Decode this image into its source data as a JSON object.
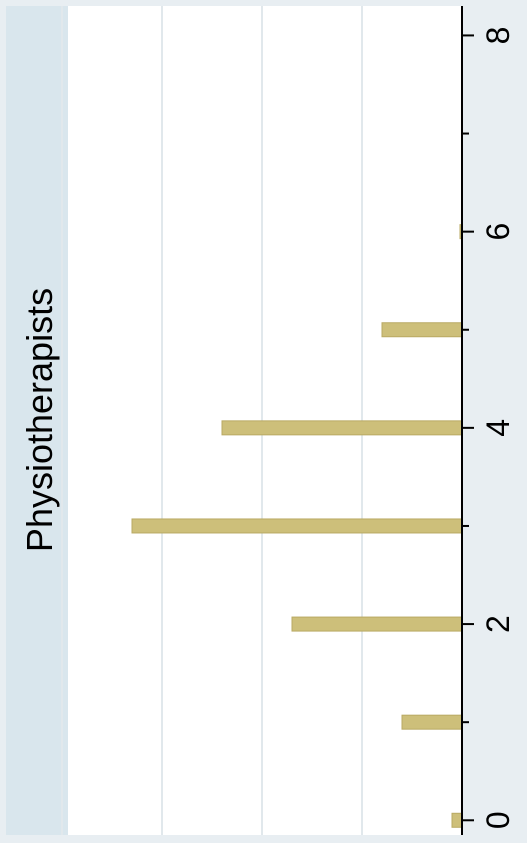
{
  "chart_data": {
    "type": "bar",
    "orientation": "horizontal",
    "title": "Physiotherapists",
    "x": [
      0,
      1,
      2,
      3,
      4,
      5,
      6
    ],
    "values": [
      0.01,
      0.06,
      0.17,
      0.33,
      0.24,
      0.08,
      0.002
    ],
    "xlim": [
      -0.15,
      8.3
    ],
    "x_ticks": [
      "0",
      "2",
      "4",
      "6",
      "8"
    ],
    "ylim": [
      0,
      0.4
    ],
    "grid": true,
    "colors": {
      "background": "#e8eef2",
      "plot_area": "#ffffff",
      "title_strip": "#d9e6ed",
      "bar_fill": "#cdbf7a",
      "bar_stroke": "#b9a963",
      "grid": "#e1e8ec",
      "axis": "#000000"
    }
  }
}
